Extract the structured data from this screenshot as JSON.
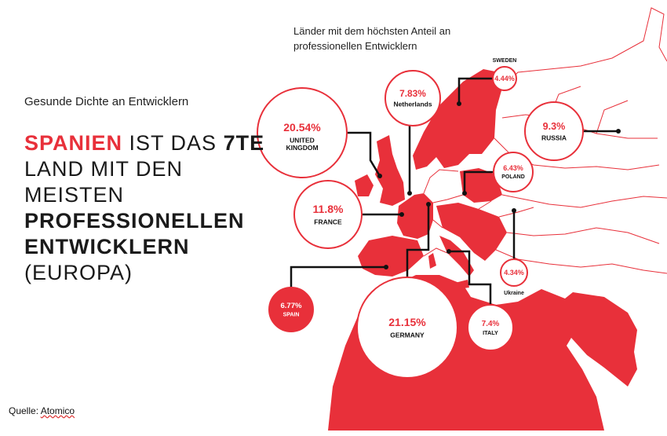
{
  "heading": {
    "subtitle": "Gesunde Dichte an Entwicklern",
    "line1_red": "SPANIEN",
    "line1_mid": " IST DAS ",
    "line1_bold": "7TE",
    "line2": "LAND MIT DEN",
    "line3": "MEISTEN",
    "line4": "PROFESSIONELLEN",
    "line5": "ENTWICKLERN",
    "line6": "(EUROPA)"
  },
  "source": {
    "label": "Quelle: ",
    "name": "Atomico"
  },
  "colors": {
    "accent": "#e8303a",
    "text": "#1a1a1a"
  },
  "chart_data": {
    "type": "bubble-map",
    "title": "Länder mit dem höchsten Anteil an professionellen Entwicklern",
    "unit": "%",
    "series": [
      {
        "country": "UNITED KINGDOM",
        "value": 20.54,
        "label": "20.54%"
      },
      {
        "country": "Netherlands",
        "value": 7.83,
        "label": "7.83%"
      },
      {
        "country": "SWEDEN",
        "value": 4.44,
        "label": "4.44%"
      },
      {
        "country": "RUSSIA",
        "value": 9.3,
        "label": "9.3%"
      },
      {
        "country": "POLAND",
        "value": 6.43,
        "label": "6.43%"
      },
      {
        "country": "FRANCE",
        "value": 11.8,
        "label": "11.8%"
      },
      {
        "country": "Ukraine",
        "value": 4.34,
        "label": "4.34%"
      },
      {
        "country": "SPAIN",
        "value": 6.77,
        "label": "6.77%",
        "highlighted": true
      },
      {
        "country": "GERMANY",
        "value": 21.15,
        "label": "21.15%"
      },
      {
        "country": "ITALY",
        "value": 7.4,
        "label": "7.4%"
      }
    ]
  }
}
